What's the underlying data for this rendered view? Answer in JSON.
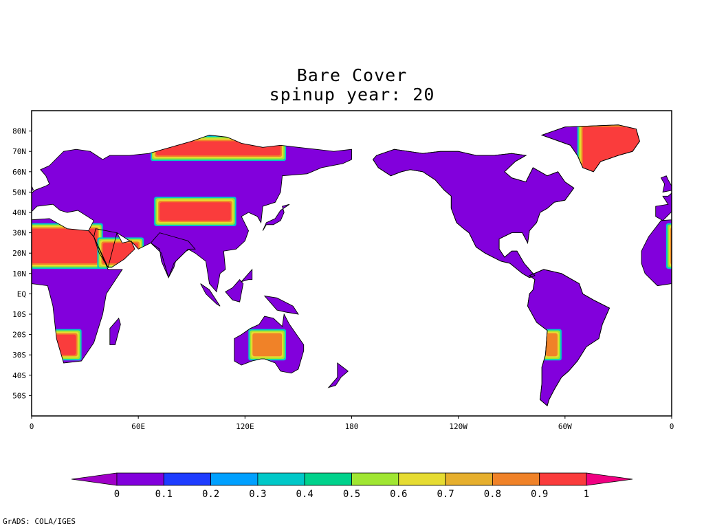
{
  "title": "Bare Cover",
  "subtitle": "spinup year: 20",
  "lat_labels": [
    "80N",
    "70N",
    "60N",
    "50N",
    "40N",
    "30N",
    "20N",
    "10N",
    "EQ",
    "10S",
    "20S",
    "30S",
    "40S",
    "50S"
  ],
  "lat_values": [
    80,
    70,
    60,
    50,
    40,
    30,
    20,
    10,
    0,
    -10,
    -20,
    -30,
    -40,
    -50
  ],
  "lon_labels": [
    "0",
    "60E",
    "120E",
    "180",
    "120W",
    "60W",
    "0"
  ],
  "lon_values": [
    0,
    60,
    120,
    180,
    240,
    300,
    360
  ],
  "colorbar": {
    "ticks": [
      "0",
      "0.1",
      "0.2",
      "0.3",
      "0.4",
      "0.5",
      "0.6",
      "0.7",
      "0.8",
      "0.9",
      "1"
    ],
    "colors": [
      "#a000c8",
      "#8200dc",
      "#1e3cff",
      "#00a0ff",
      "#00c8c8",
      "#00d28c",
      "#a0e632",
      "#e6dc32",
      "#e6af2d",
      "#f08228",
      "#fa3c3c",
      "#f00082"
    ]
  },
  "credit": "GrADS: COLA/IGES",
  "chart_data": {
    "type": "heatmap",
    "title": "Bare Cover",
    "subtitle": "spinup year: 20",
    "xlim": [
      0,
      360
    ],
    "ylim": [
      -60,
      90
    ],
    "value_range": [
      0,
      1
    ],
    "regions": [
      {
        "lon": [
          0,
          37
        ],
        "lat": [
          15,
          32
        ],
        "value": 0.95
      },
      {
        "lon": [
          10,
          25
        ],
        "lat": [
          -30,
          -20
        ],
        "value": 0.9
      },
      {
        "lon": [
          72,
          112
        ],
        "lat": [
          36,
          45
        ],
        "value": 0.95
      },
      {
        "lon": [
          40,
          60
        ],
        "lat": [
          15,
          25
        ],
        "value": 0.95
      },
      {
        "lon": [
          70,
          140
        ],
        "lat": [
          68,
          75
        ],
        "value": 0.9
      },
      {
        "lon": [
          310,
          345
        ],
        "lat": [
          60,
          82
        ],
        "value": 0.95
      },
      {
        "lon": [
          125,
          140
        ],
        "lat": [
          -30,
          -20
        ],
        "value": 0.8
      },
      {
        "lon": [
          290,
          295
        ],
        "lat": [
          -30,
          -20
        ],
        "value": 0.85
      },
      {
        "lon": [
          0,
          60
        ],
        "lat": [
          -35,
          15
        ],
        "value": 0.05
      },
      {
        "lon": [
          20,
          140
        ],
        "lat": [
          20,
          70
        ],
        "value": 0.05
      },
      {
        "lon": [
          195,
          300
        ],
        "lat": [
          15,
          70
        ],
        "value": 0.05
      },
      {
        "lon": [
          280,
          330
        ],
        "lat": [
          -55,
          10
        ],
        "value": 0.05
      },
      {
        "lon": [
          113,
          153
        ],
        "lat": [
          -38,
          -12
        ],
        "value": 0.1
      }
    ]
  }
}
